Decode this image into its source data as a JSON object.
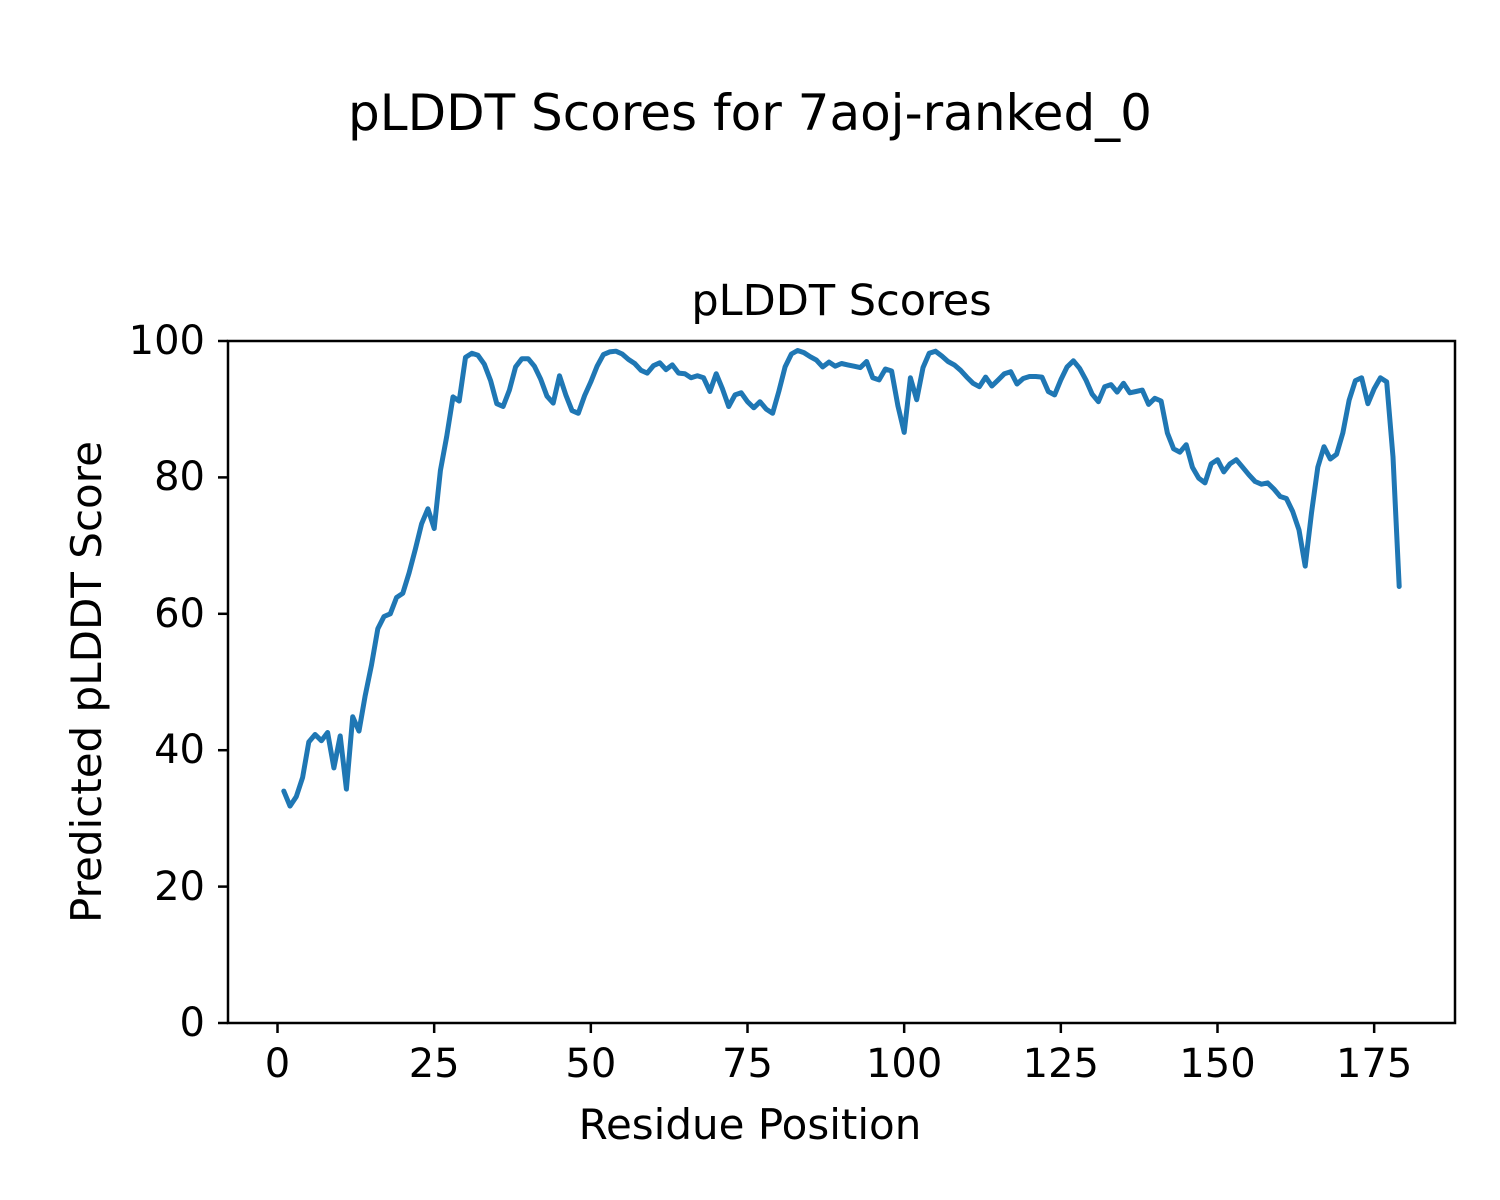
{
  "figure_title": "pLDDT Scores for 7aoj-ranked_0",
  "chart_data": {
    "type": "line",
    "title": "pLDDT Scores",
    "xlabel": "Residue Position",
    "ylabel": "Predicted pLDDT Score",
    "x_ticks": [
      0,
      25,
      50,
      75,
      100,
      125,
      150,
      175
    ],
    "y_ticks": [
      0,
      20,
      40,
      60,
      80,
      100
    ],
    "xlim": [
      -7.9,
      187.9
    ],
    "ylim": [
      0,
      100
    ],
    "grid": false,
    "legend": "none",
    "line_color": "#1f77b4",
    "line_width": 5,
    "axis_color": "#000000",
    "series": [
      {
        "name": "pLDDT",
        "x": [
          1,
          2,
          3,
          4,
          5,
          6,
          7,
          8,
          9,
          10,
          11,
          12,
          13,
          14,
          15,
          16,
          17,
          18,
          19,
          20,
          21,
          22,
          23,
          24,
          25,
          26,
          27,
          28,
          29,
          30,
          31,
          32,
          33,
          34,
          35,
          36,
          37,
          38,
          39,
          40,
          41,
          42,
          43,
          44,
          45,
          46,
          47,
          48,
          49,
          50,
          51,
          52,
          53,
          54,
          55,
          56,
          57,
          58,
          59,
          60,
          61,
          62,
          63,
          64,
          65,
          66,
          67,
          68,
          69,
          70,
          71,
          72,
          73,
          74,
          75,
          76,
          77,
          78,
          79,
          80,
          81,
          82,
          83,
          84,
          85,
          86,
          87,
          88,
          89,
          90,
          91,
          92,
          93,
          94,
          95,
          96,
          97,
          98,
          99,
          100,
          101,
          102,
          103,
          104,
          105,
          106,
          107,
          108,
          109,
          110,
          111,
          112,
          113,
          114,
          115,
          116,
          117,
          118,
          119,
          120,
          121,
          122,
          123,
          124,
          125,
          126,
          127,
          128,
          129,
          130,
          131,
          132,
          133,
          134,
          135,
          136,
          137,
          138,
          139,
          140,
          141,
          142,
          143,
          144,
          145,
          146,
          147,
          148,
          149,
          150,
          151,
          152,
          153,
          154,
          155,
          156,
          157,
          158,
          159,
          160,
          161,
          162,
          163,
          164,
          165,
          166,
          167,
          168,
          169,
          170,
          171,
          172,
          173,
          174,
          175,
          176,
          177,
          178,
          179
        ],
        "y": [
          34,
          31.8,
          33.2,
          36,
          41.2,
          42.3,
          41.4,
          42.6,
          37.4,
          42.1,
          34.3,
          44.9,
          42.8,
          48,
          52.5,
          57.8,
          59.6,
          60,
          62.4,
          63,
          66,
          69.5,
          73.2,
          75.4,
          72.5,
          81,
          86,
          91.8,
          91.2,
          97.6,
          98.2,
          97.9,
          96.6,
          94.2,
          90.8,
          90.4,
          92.8,
          96.2,
          97.4,
          97.4,
          96.3,
          94.4,
          91.9,
          90.9,
          94.9,
          92.1,
          89.8,
          89.4,
          92,
          94,
          96.3,
          98,
          98.4,
          98.5,
          98.1,
          97.3,
          96.7,
          95.7,
          95.3,
          96.4,
          96.8,
          95.8,
          96.5,
          95.3,
          95.2,
          94.6,
          94.9,
          94.6,
          92.6,
          95.2,
          93,
          90.4,
          92.1,
          92.4,
          91.1,
          90.2,
          91.1,
          90,
          89.4,
          92.6,
          96.2,
          98.1,
          98.6,
          98.3,
          97.7,
          97.2,
          96.2,
          96.9,
          96.3,
          96.7,
          96.5,
          96.3,
          96.1,
          97,
          94.6,
          94.3,
          95.9,
          95.6,
          90.5,
          86.6,
          94.6,
          91.4,
          96.1,
          98.2,
          98.5,
          97.8,
          97,
          96.5,
          95.7,
          94.7,
          93.8,
          93.3,
          94.7,
          93.4,
          94.3,
          95.2,
          95.5,
          93.7,
          94.5,
          94.8,
          94.8,
          94.7,
          92.6,
          92.1,
          94.3,
          96.2,
          97.1,
          96,
          94.3,
          92.2,
          91.1,
          93.3,
          93.6,
          92.5,
          93.8,
          92.4,
          92.6,
          92.8,
          90.7,
          91.6,
          91.2,
          86.5,
          84.2,
          83.7,
          84.8,
          81.5,
          79.9,
          79.2,
          82,
          82.6,
          80.8,
          82,
          82.6,
          81.5,
          80.4,
          79.4,
          79,
          79.2,
          78.3,
          77.2,
          76.9,
          75,
          72.3,
          67,
          74.8,
          81.5,
          84.5,
          82.7,
          83.4,
          86.5,
          91.3,
          94.2,
          94.6,
          90.8,
          93,
          94.6,
          94,
          83,
          64
        ]
      }
    ]
  }
}
